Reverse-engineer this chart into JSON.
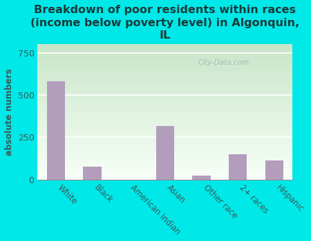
{
  "title": "Breakdown of poor residents within races\n(income below poverty level) in Algonquin,\nIL",
  "categories": [
    "White",
    "Black",
    "American Indian",
    "Asian",
    "Other race",
    "2+ races",
    "Hispanic"
  ],
  "values": [
    580,
    75,
    0,
    315,
    22,
    150,
    115
  ],
  "bar_color": "#b39dbd",
  "ylabel": "absolute numbers",
  "ylim": [
    0,
    800
  ],
  "yticks": [
    0,
    250,
    500,
    750
  ],
  "bg_color": "#00e8e8",
  "plot_bg_topleft": "#c8e6c0",
  "plot_bg_bottomright": "#f5fff5",
  "title_color": "#1a3a3a",
  "title_fontsize": 11.5,
  "watermark": "City-Data.com",
  "tick_color": "#3a5a5a",
  "ylabel_color": "#3a5a5a"
}
